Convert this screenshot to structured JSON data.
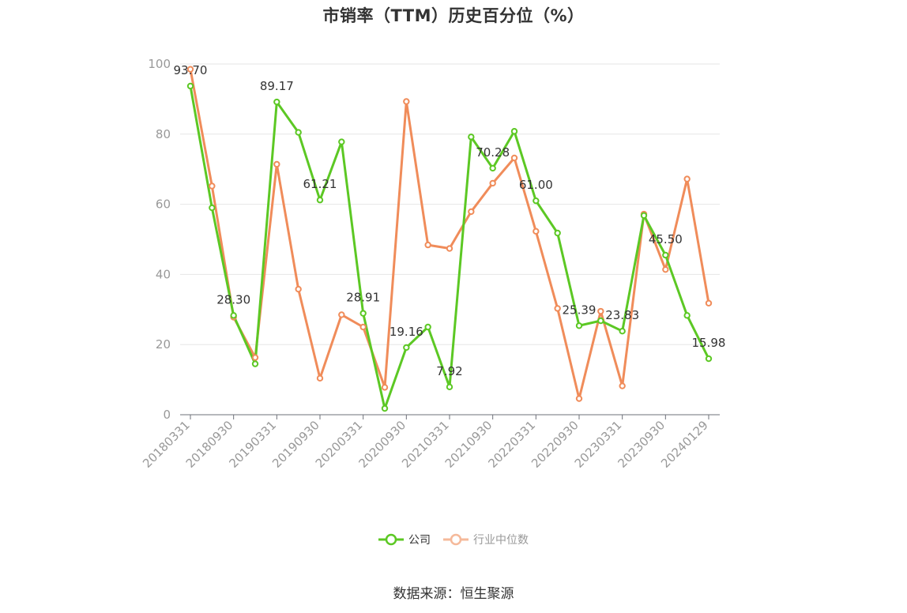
{
  "title": "市销率（TTM）历史百分位（%）",
  "source": "数据来源：恒生聚源",
  "legend": [
    {
      "name": "公司",
      "color": "#5cc824"
    },
    {
      "name": "行业中位数",
      "color": "#f08c5a"
    }
  ],
  "chart_data": {
    "type": "line",
    "title": "市销率（TTM）历史百分位（%）",
    "xlabel": "",
    "ylabel": "",
    "ylim": [
      0,
      100
    ],
    "yticks": [
      0,
      20,
      40,
      60,
      80,
      100
    ],
    "grid": true,
    "legend_position": "bottom",
    "x": [
      "20180331",
      "20180630",
      "20180930",
      "20181231",
      "20190331",
      "20190630",
      "20190930",
      "20191231",
      "20200331",
      "20200630",
      "20200930",
      "20201231",
      "20210331",
      "20210630",
      "20210930",
      "20211231",
      "20220331",
      "20220630",
      "20220930",
      "20221231",
      "20230331",
      "20230630",
      "20230930",
      "20231231",
      "20240129"
    ],
    "xtick_labels": [
      "20180331",
      "20180930",
      "20190331",
      "20190930",
      "20200331",
      "20200930",
      "20210331",
      "20210930",
      "20220331",
      "20220930",
      "20230331",
      "20230930",
      "20240129"
    ],
    "series": [
      {
        "name": "公司",
        "color": "#5cc824",
        "values": [
          93.7,
          59.0,
          28.3,
          14.5,
          89.17,
          80.5,
          61.21,
          77.8,
          28.91,
          1.8,
          19.16,
          25.0,
          7.92,
          79.2,
          70.28,
          80.8,
          61.0,
          51.8,
          25.39,
          26.8,
          23.83,
          56.8,
          45.5,
          28.3,
          15.98
        ],
        "labels": {
          "0": "93.70",
          "2": "28.30",
          "4": "89.17",
          "6": "61.21",
          "8": "28.91",
          "10": "19.16",
          "12": "7.92",
          "14": "70.28",
          "16": "61.00",
          "18": "25.39",
          "20": "23.83",
          "22": "45.50",
          "24": "15.98"
        }
      },
      {
        "name": "行业中位数",
        "color": "#f08c5a",
        "values": [
          98.5,
          65.2,
          27.8,
          16.3,
          71.4,
          35.8,
          10.4,
          28.5,
          25.0,
          7.8,
          89.3,
          48.4,
          47.4,
          57.9,
          66.0,
          73.2,
          52.3,
          30.3,
          4.6,
          29.5,
          8.2,
          57.2,
          41.4,
          67.2,
          31.8
        ]
      }
    ]
  }
}
